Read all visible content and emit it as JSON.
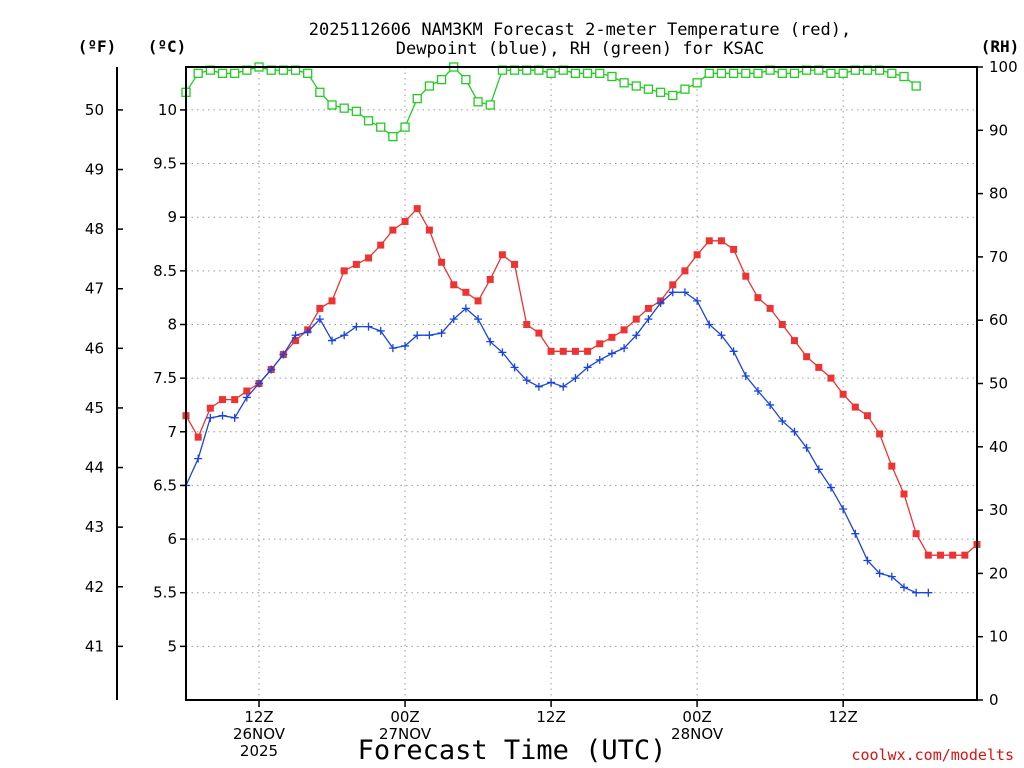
{
  "chart_data": {
    "type": "line",
    "title_line1": "2025112606 NAM3KM Forecast 2-meter Temperature (red),",
    "title_line2": "Dewpoint (blue), RH (green) for KSAC",
    "left_unit_f": "(ºF)",
    "left_unit_c": "(ºC)",
    "right_unit": "(RH)",
    "xlabel": "Forecast Time (UTC)",
    "credit": "coolwx.com/modelts",
    "x_range_hours": [
      0,
      65
    ],
    "c_axis": {
      "range": [
        4.5,
        10.4
      ],
      "ticks": [
        "5",
        "5.5",
        "6",
        "6.5",
        "7",
        "7.5",
        "8",
        "8.5",
        "9",
        "9.5",
        "10"
      ]
    },
    "f_axis": {
      "ticks": [
        "41",
        "42",
        "43",
        "44",
        "45",
        "46",
        "47",
        "48",
        "49",
        "50"
      ]
    },
    "rh_axis": {
      "range": [
        0,
        100
      ],
      "ticks": [
        "0",
        "10",
        "20",
        "30",
        "40",
        "50",
        "60",
        "70",
        "80",
        "90",
        "100"
      ]
    },
    "x_ticks": [
      {
        "hour": 6,
        "lines": [
          "12Z",
          "26NOV",
          "2025"
        ]
      },
      {
        "hour": 18,
        "lines": [
          "00Z",
          "27NOV"
        ]
      },
      {
        "hour": 30,
        "lines": [
          "12Z",
          ""
        ]
      },
      {
        "hour": 42,
        "lines": [
          "00Z",
          "28NOV"
        ]
      },
      {
        "hour": 54,
        "lines": [
          "12Z",
          ""
        ]
      }
    ],
    "series": [
      {
        "name": "Temperature",
        "unit": "C",
        "color": "#ee3333",
        "marker": "filled-square",
        "values": [
          7.15,
          6.95,
          7.22,
          7.3,
          7.3,
          7.38,
          7.45,
          7.58,
          7.72,
          7.85,
          7.95,
          8.15,
          8.22,
          8.5,
          8.56,
          8.62,
          8.74,
          8.88,
          8.96,
          9.08,
          8.88,
          8.58,
          8.37,
          8.3,
          8.22,
          8.42,
          8.65,
          8.56,
          8.0,
          7.92,
          7.75,
          7.75,
          7.75,
          7.75,
          7.82,
          7.88,
          7.95,
          8.05,
          8.15,
          8.22,
          8.37,
          8.5,
          8.65,
          8.78,
          8.78,
          8.7,
          8.45,
          8.25,
          8.15,
          8.0,
          7.85,
          7.7,
          7.6,
          7.5,
          7.35,
          7.23,
          7.15,
          6.98,
          6.68,
          6.42,
          6.05,
          5.85,
          5.85,
          5.85,
          5.85,
          5.95
        ]
      },
      {
        "name": "Dewpoint",
        "unit": "C",
        "color": "#1a44e0",
        "marker": "plus",
        "values": [
          6.5,
          6.75,
          7.13,
          7.15,
          7.13,
          7.32,
          7.45,
          7.58,
          7.72,
          7.9,
          7.93,
          8.05,
          7.85,
          7.9,
          7.98,
          7.98,
          7.94,
          7.78,
          7.8,
          7.9,
          7.9,
          7.92,
          8.05,
          8.15,
          8.05,
          7.84,
          7.74,
          7.6,
          7.48,
          7.42,
          7.46,
          7.42,
          7.5,
          7.6,
          7.67,
          7.73,
          7.78,
          7.9,
          8.05,
          8.2,
          8.3,
          8.3,
          8.22,
          8.0,
          7.9,
          7.75,
          7.52,
          7.38,
          7.25,
          7.1,
          7.0,
          6.85,
          6.65,
          6.48,
          6.28,
          6.05,
          5.8,
          5.68,
          5.65,
          5.55,
          5.5,
          5.5
        ]
      },
      {
        "name": "RH",
        "unit": "%",
        "color": "#22cc22",
        "marker": "open-square",
        "values": [
          96,
          99,
          99.5,
          99,
          99,
          99.5,
          100,
          99.5,
          99.5,
          99.5,
          99,
          96,
          94,
          93.5,
          93,
          91.5,
          90.5,
          89,
          90.5,
          95,
          97,
          98,
          100,
          98,
          94.5,
          94,
          99.5,
          99.5,
          99.5,
          99.5,
          99,
          99.5,
          99,
          99,
          99,
          98.5,
          97.5,
          97,
          96.5,
          96,
          95.5,
          96.5,
          97.5,
          99,
          99,
          99,
          99,
          99,
          99.5,
          99,
          99,
          99.5,
          99.5,
          99,
          99,
          99.5,
          99.5,
          99.5,
          99,
          98.5,
          97
        ]
      }
    ]
  }
}
